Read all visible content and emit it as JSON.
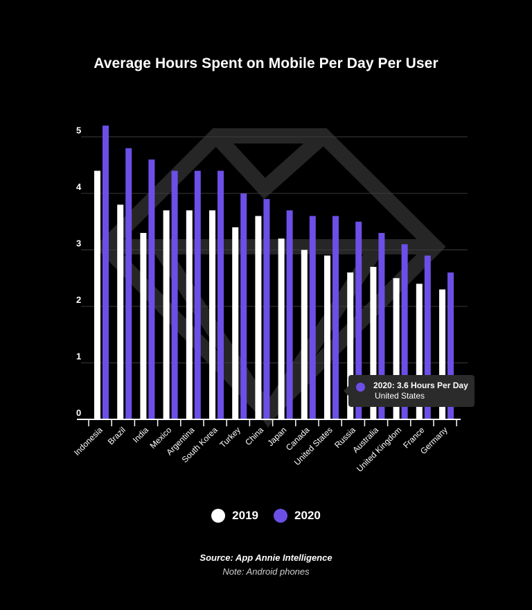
{
  "colors": {
    "background": "#000000",
    "series_2019": "#ffffff",
    "series_2020": "#6c4fe6",
    "grid": "#3a3a3a",
    "axis": "#ffffff",
    "watermark": "#262626",
    "tooltip_bg": "#2b2b2b"
  },
  "watermark_icon": "diamond-logo-icon",
  "chart_data": {
    "type": "bar",
    "title": "Average Hours Spent on Mobile Per Day Per User",
    "categories": [
      "Indonesia",
      "Brazil",
      "India",
      "Mexico",
      "Argentina",
      "South Korea",
      "Turkey",
      "China",
      "Japan",
      "Canada",
      "United States",
      "Russia",
      "Australia",
      "United Kingdom",
      "France",
      "Germany"
    ],
    "series": [
      {
        "name": "2019",
        "values": [
          4.4,
          3.8,
          3.3,
          3.7,
          3.7,
          3.7,
          3.4,
          3.6,
          3.2,
          3.0,
          2.9,
          2.6,
          2.7,
          2.5,
          2.4,
          2.3
        ]
      },
      {
        "name": "2020",
        "values": [
          5.2,
          4.8,
          4.6,
          4.4,
          4.4,
          4.4,
          4.0,
          3.9,
          3.7,
          3.6,
          3.6,
          3.5,
          3.3,
          3.1,
          2.9,
          2.6
        ]
      }
    ],
    "yticks": [
      0,
      1,
      2,
      3,
      4,
      5
    ],
    "ylim": [
      0,
      5.2
    ],
    "xlabel": "",
    "ylabel": "",
    "grid": true,
    "legend_position": "bottom-center"
  },
  "legend": {
    "items": [
      {
        "label": "2019"
      },
      {
        "label": "2020"
      }
    ]
  },
  "tooltip": {
    "title": "2020: 3.6 Hours Per Day",
    "subtitle": "United States"
  },
  "footer": {
    "source": "Source: App Annie Intelligence",
    "note": "Note: Android phones"
  }
}
